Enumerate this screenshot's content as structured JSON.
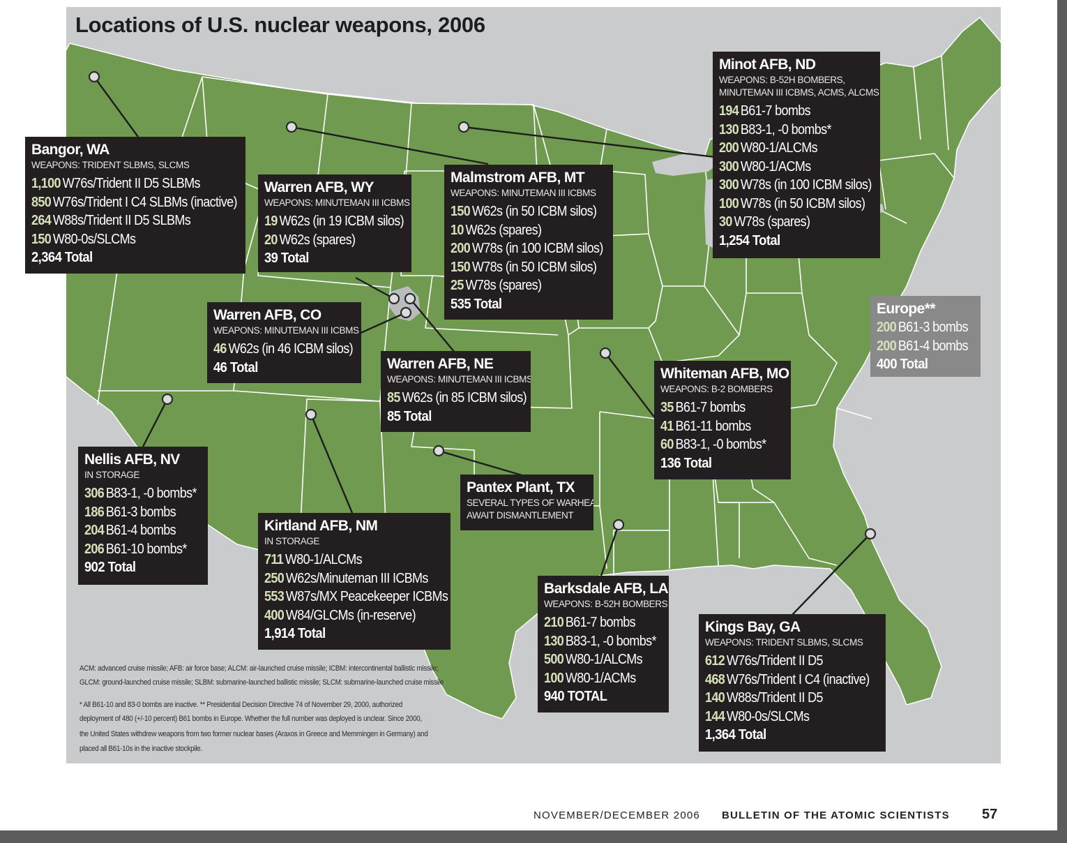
{
  "title": "Locations of U.S. nuclear weapons, 2006",
  "colors": {
    "land": "#6f9a4f",
    "background": "#c9cbcc",
    "box": "#231f20",
    "number": "#d6e0b8",
    "europe_box": "#898989"
  },
  "sites": {
    "bangor": {
      "name": "Bangor, WA",
      "weapons": "WEAPONS: TRIDENT SLBMS, SLCMS",
      "rows": [
        {
          "n": "1,100",
          "t": "W76s/Trident II D5 SLBMs"
        },
        {
          "n": "850",
          "t": "W76s/Trident I C4 SLBMs (inactive)"
        },
        {
          "n": "264",
          "t": "W88s/Trident II D5 SLBMs"
        },
        {
          "n": "150",
          "t": "W80-0s/SLCMs"
        }
      ],
      "total": "2,364 Total"
    },
    "warren_wy": {
      "name": "Warren AFB, WY",
      "weapons": "WEAPONS: MINUTEMAN III ICBMS",
      "rows": [
        {
          "n": "19",
          "t": "W62s (in 19 ICBM silos)"
        },
        {
          "n": "20",
          "t": "W62s (spares)"
        }
      ],
      "total": "39 Total"
    },
    "malmstrom": {
      "name": "Malmstrom AFB, MT",
      "weapons": "WEAPONS: MINUTEMAN III ICBMS",
      "rows": [
        {
          "n": "150",
          "t": "W62s (in 50 ICBM silos)"
        },
        {
          "n": "10",
          "t": "W62s (spares)"
        },
        {
          "n": "200",
          "t": "W78s (in 100 ICBM silos)"
        },
        {
          "n": "150",
          "t": "W78s (in 50 ICBM silos)"
        },
        {
          "n": "25",
          "t": "W78s (spares)"
        }
      ],
      "total": "535 Total"
    },
    "minot": {
      "name": "Minot AFB, ND",
      "weapons": "WEAPONS: B-52H BOMBERS,",
      "weapons2": "MINUTEMAN III ICBMS, ACMS, ALCMS",
      "rows": [
        {
          "n": "194",
          "t": "B61-7 bombs"
        },
        {
          "n": "130",
          "t": "B83-1, -0 bombs*"
        },
        {
          "n": "200",
          "t": "W80-1/ALCMs"
        },
        {
          "n": "300",
          "t": "W80-1/ACMs"
        },
        {
          "n": "300",
          "t": "W78s (in 100 ICBM silos)"
        },
        {
          "n": "100",
          "t": "W78s (in 50 ICBM silos)"
        },
        {
          "n": "30",
          "t": "W78s (spares)"
        }
      ],
      "total": "1,254 Total"
    },
    "warren_co": {
      "name": "Warren AFB, CO",
      "weapons": "WEAPONS: MINUTEMAN III ICBMS",
      "rows": [
        {
          "n": "46",
          "t": "W62s (in 46 ICBM silos)"
        }
      ],
      "total": "46 Total"
    },
    "warren_ne": {
      "name": "Warren AFB, NE",
      "weapons": "WEAPONS: MINUTEMAN III ICBMS",
      "rows": [
        {
          "n": "85",
          "t": "W62s (in 85 ICBM silos)"
        }
      ],
      "total": "85 Total"
    },
    "europe": {
      "name": "Europe**",
      "rows": [
        {
          "n": "200",
          "t": "B61-3 bombs"
        },
        {
          "n": "200",
          "t": "B61-4 bombs"
        }
      ],
      "total": "400 Total"
    },
    "whiteman": {
      "name": "Whiteman AFB, MO",
      "weapons": "WEAPONS: B-2 BOMBERS",
      "rows": [
        {
          "n": "35",
          "t": "B61-7 bombs"
        },
        {
          "n": "41",
          "t": "B61-11 bombs"
        },
        {
          "n": "60",
          "t": "B83-1, -0 bombs*"
        }
      ],
      "total": "136 Total"
    },
    "nellis": {
      "name": "Nellis AFB, NV",
      "weapons": "IN STORAGE",
      "rows": [
        {
          "n": "306",
          "t": "B83-1, -0 bombs*"
        },
        {
          "n": "186",
          "t": "B61-3 bombs"
        },
        {
          "n": "204",
          "t": "B61-4 bombs"
        },
        {
          "n": "206",
          "t": "B61-10 bombs*"
        }
      ],
      "total": "902 Total"
    },
    "pantex": {
      "name": "Pantex Plant, TX",
      "weapons": "SEVERAL TYPES OF WARHEADS",
      "weapons2": "AWAIT DISMANTLEMENT"
    },
    "kirtland": {
      "name": "Kirtland AFB, NM",
      "weapons": "IN STORAGE",
      "rows": [
        {
          "n": "711",
          "t": "W80-1/ALCMs"
        },
        {
          "n": "250",
          "t": "W62s/Minuteman III ICBMs"
        },
        {
          "n": "553",
          "t": "W87s/MX Peacekeeper ICBMs"
        },
        {
          "n": "400",
          "t": "W84/GLCMs (in-reserve)"
        }
      ],
      "total": "1,914 Total"
    },
    "barksdale": {
      "name": "Barksdale AFB, LA",
      "weapons": "WEAPONS: B-52H BOMBERS",
      "rows": [
        {
          "n": "210",
          "t": "B61-7 bombs"
        },
        {
          "n": "130",
          "t": "B83-1, -0 bombs*"
        },
        {
          "n": "500",
          "t": "W80-1/ALCMs"
        },
        {
          "n": "100",
          "t": "W80-1/ACMs"
        }
      ],
      "total": "940 TOTAL"
    },
    "kings_bay": {
      "name": "Kings Bay, GA",
      "weapons": "WEAPONS: TRIDENT SLBMS, SLCMS",
      "rows": [
        {
          "n": "612",
          "t": "W76s/Trident II D5"
        },
        {
          "n": "468",
          "t": "W76s/Trident I C4 (inactive)"
        },
        {
          "n": "140",
          "t": "W88s/Trident II D5"
        },
        {
          "n": "144",
          "t": "W80-0s/SLCMs"
        }
      ],
      "total": "1,364 Total"
    }
  },
  "notes": {
    "abbrev1": "ACM: advanced cruise missile; AFB: air force base; ALCM: air-launched cruise missile; ICBM: intercontinental ballistic missile;",
    "abbrev2": "GLCM: ground-launched cruise missile; SLBM: submarine-launched ballistic missile; SLCM: submarine-launched cruise missile",
    "foot1": "* All B61-10 and 83-0 bombs are inactive. ** Presidential Decision Directive 74 of November 29, 2000, authorized",
    "foot2": "deployment of 480 (+/-10 percent) B61 bombs in Europe. Whether the full number was deployed is unclear. Since 2000,",
    "foot3": "the United States withdrew weapons from two former nuclear bases (Araxos in Greece and Memmingen in Germany) and",
    "foot4": "placed all B61-10s in the inactive stockpile."
  },
  "footer": {
    "issue": "NOVEMBER/DECEMBER 2006",
    "publication": "BULLETIN OF THE ATOMIC SCIENTISTS",
    "page": "57"
  }
}
